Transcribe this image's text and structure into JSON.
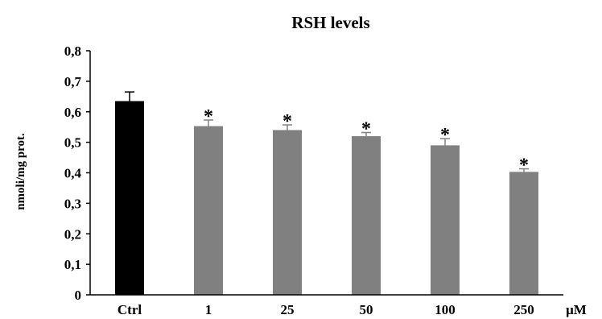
{
  "chart_data": {
    "type": "bar",
    "title": "RSH levels",
    "ylabel": "nmoli/mg prot.",
    "xunit": "μM",
    "categories": [
      "Ctrl",
      "1",
      "25",
      "50",
      "100",
      "250"
    ],
    "values": [
      0.635,
      0.553,
      0.54,
      0.52,
      0.49,
      0.403
    ],
    "errors": [
      0.03,
      0.02,
      0.017,
      0.012,
      0.022,
      0.01
    ],
    "annotations": [
      "",
      "*",
      "*",
      "*",
      "*",
      "*"
    ],
    "bar_colors": [
      "#000000",
      "#808080",
      "#808080",
      "#808080",
      "#808080",
      "#808080"
    ],
    "ylim": [
      0,
      0.8
    ],
    "yticks": [
      0,
      0.1,
      0.2,
      0.3,
      0.4,
      0.5,
      0.6,
      0.7,
      0.8
    ],
    "ytick_labels": [
      "0",
      "0,1",
      "0,2",
      "0,3",
      "0,4",
      "0,5",
      "0,6",
      "0,7",
      "0,8"
    ],
    "grid": false,
    "legend": "none"
  }
}
